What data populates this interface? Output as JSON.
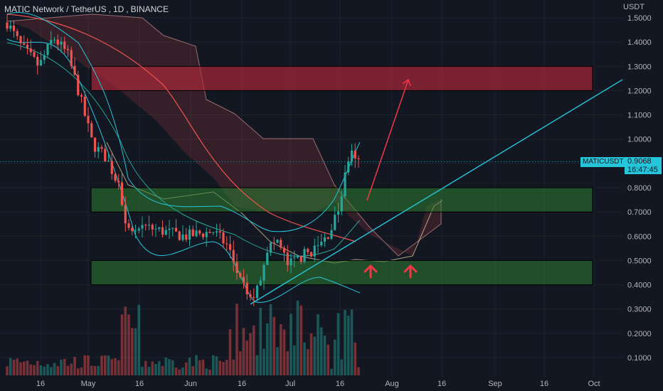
{
  "header": {
    "symbol_name": "MATIC Network / TetherUS",
    "interval": "1D",
    "exchange": "BINANCE"
  },
  "price_axis": {
    "currency": "USDT",
    "ticks": [
      "1.5000",
      "1.4000",
      "1.3000",
      "1.2000",
      "1.1000",
      "1.0000",
      "0.9000",
      "0.8000",
      "0.7000",
      "0.6000",
      "0.5000",
      "0.4000",
      "0.3000",
      "0.2000",
      "0.1000"
    ]
  },
  "time_axis": {
    "ticks": [
      "16",
      "May",
      "16",
      "Jun",
      "16",
      "Jul",
      "16",
      "Aug",
      "16",
      "Sep",
      "16",
      "Oct"
    ]
  },
  "last_price": {
    "symbol": "MATICUSDT",
    "value": "0.9068",
    "countdown": "16:47:45"
  },
  "colors": {
    "background": "#131722",
    "up": "#26a69a",
    "down": "#ef5350",
    "resistance_zone": "#b2283a",
    "support_zone": "#2e7d32",
    "trendline": "#26c6da",
    "arrow": "#f23645"
  },
  "chart_data": {
    "type": "candlestick",
    "symbol": "MATICUSDT",
    "interval": "1D",
    "x": [
      "16",
      "May",
      "16",
      "Jun",
      "16",
      "Jul",
      "16",
      "Aug",
      "16",
      "Sep",
      "16",
      "Oct"
    ],
    "ylim": [
      0.05,
      1.55
    ],
    "zones": [
      {
        "type": "resistance",
        "from": 1.2,
        "to": 1.3
      },
      {
        "type": "support",
        "from": 0.7,
        "to": 0.8
      },
      {
        "type": "support",
        "from": 0.4,
        "to": 0.5
      }
    ],
    "trendline": {
      "from": {
        "x": "Jun 20",
        "y": 0.32
      },
      "to": {
        "x": "Oct 12",
        "y": 1.25
      }
    },
    "last_price": 0.9068
  }
}
